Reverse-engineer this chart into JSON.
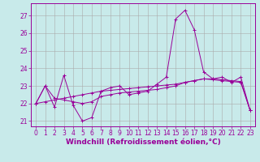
{
  "xlabel": "Windchill (Refroidissement éolien,°C)",
  "background_color": "#c8eaea",
  "line_color": "#990099",
  "grid_color": "#aaaaaa",
  "xlim": [
    -0.5,
    23.5
  ],
  "ylim": [
    20.7,
    27.7
  ],
  "yticks": [
    21,
    22,
    23,
    24,
    25,
    26,
    27
  ],
  "xticks": [
    0,
    1,
    2,
    3,
    4,
    5,
    6,
    7,
    8,
    9,
    10,
    11,
    12,
    13,
    14,
    15,
    16,
    17,
    18,
    19,
    20,
    21,
    22,
    23
  ],
  "tick_fontsize": 5.5,
  "xlabel_fontsize": 6.5,
  "series": [
    [
      22.0,
      23.0,
      21.8,
      23.6,
      21.9,
      21.0,
      21.2,
      22.7,
      22.9,
      23.0,
      22.5,
      22.6,
      22.7,
      23.1,
      23.5,
      26.8,
      27.3,
      26.2,
      23.8,
      23.4,
      23.5,
      23.2,
      23.5,
      21.6
    ],
    [
      22.0,
      22.1,
      22.2,
      22.3,
      22.4,
      22.5,
      22.6,
      22.7,
      22.75,
      22.8,
      22.85,
      22.9,
      22.95,
      23.0,
      23.05,
      23.1,
      23.2,
      23.3,
      23.4,
      23.4,
      23.35,
      23.3,
      23.25,
      21.6
    ],
    [
      22.0,
      23.0,
      22.3,
      22.2,
      22.1,
      22.0,
      22.1,
      22.4,
      22.5,
      22.6,
      22.65,
      22.7,
      22.75,
      22.8,
      22.9,
      23.0,
      23.2,
      23.3,
      23.4,
      23.35,
      23.3,
      23.25,
      23.2,
      21.6
    ]
  ]
}
